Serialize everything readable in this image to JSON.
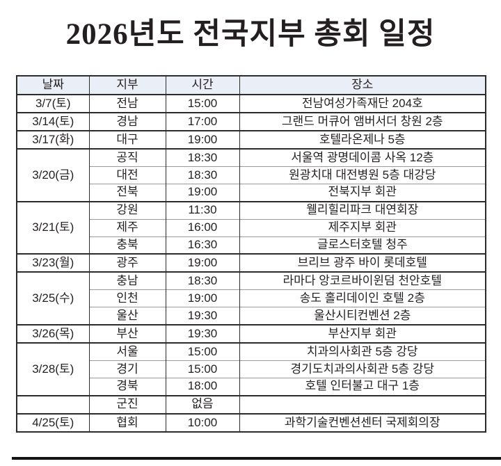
{
  "title": "2026년도 전국지부 총회 일정",
  "table": {
    "headers": [
      "날짜",
      "지부",
      "시간",
      "장소"
    ],
    "groups": [
      {
        "date": "3/7(토)",
        "entries": [
          {
            "branch": "전남",
            "time": "15:00",
            "place": "전남여성가족재단 204호"
          }
        ]
      },
      {
        "date": "3/14(토)",
        "entries": [
          {
            "branch": "경남",
            "time": "17:00",
            "place": "그랜드 머큐어 앰버서더 창원 2층"
          }
        ]
      },
      {
        "date": "3/17(화)",
        "entries": [
          {
            "branch": "대구",
            "time": "19:00",
            "place": "호텔라온제나 5층"
          }
        ]
      },
      {
        "date": "3/20(금)",
        "entries": [
          {
            "branch": "공직",
            "time": "18:30",
            "place": "서울역 광명데이콤 사옥 12층"
          },
          {
            "branch": "대전",
            "time": "18:30",
            "place": "원광치대 대전병원 5층 대강당"
          },
          {
            "branch": "전북",
            "time": "19:00",
            "place": "전북지부 회관"
          }
        ]
      },
      {
        "date": "3/21(토)",
        "entries": [
          {
            "branch": "강원",
            "time": "11:30",
            "place": "웰리힐리파크 대연회장"
          },
          {
            "branch": "제주",
            "time": "16:00",
            "place": "제주지부 회관"
          },
          {
            "branch": "충북",
            "time": "16:30",
            "place": "글로스터호텔 청주"
          }
        ]
      },
      {
        "date": "3/23(월)",
        "entries": [
          {
            "branch": "광주",
            "time": "19:00",
            "place": "브리브 광주 바이 롯데호텔"
          }
        ]
      },
      {
        "date": "3/25(수)",
        "entries": [
          {
            "branch": "충남",
            "time": "18:30",
            "place": "라마다 앙코르바이윈덤 천안호텔"
          },
          {
            "branch": "인천",
            "time": "19:00",
            "place": "송도 홀리데이인 호텔 2층"
          },
          {
            "branch": "울산",
            "time": "19:30",
            "place": "울산시티컨벤션 2층"
          }
        ]
      },
      {
        "date": "3/26(목)",
        "entries": [
          {
            "branch": "부산",
            "time": "19:30",
            "place": "부산지부 회관"
          }
        ]
      },
      {
        "date": "3/28(토)",
        "entries": [
          {
            "branch": "서울",
            "time": "15:00",
            "place": "치과의사회관 5층 강당"
          },
          {
            "branch": "경기",
            "time": "15:00",
            "place": "경기도치과의사회관 5층 강당"
          },
          {
            "branch": "경북",
            "time": "18:00",
            "place": "호텔 인터불고 대구 1층"
          }
        ]
      },
      {
        "date": "",
        "entries": [
          {
            "branch": "군진",
            "time": "없음",
            "place": ""
          }
        ]
      },
      {
        "date": "4/25(토)",
        "entries": [
          {
            "branch": "협회",
            "time": "10:00",
            "place": "과학기술컨벤션센터 국제회의장"
          }
        ]
      }
    ]
  },
  "colors": {
    "header_bg": "#e9eef7",
    "border_dark": "#2b2b2b",
    "border_light": "#9b9b9b",
    "text": "#231f20",
    "bottom_rule": "#131313"
  }
}
